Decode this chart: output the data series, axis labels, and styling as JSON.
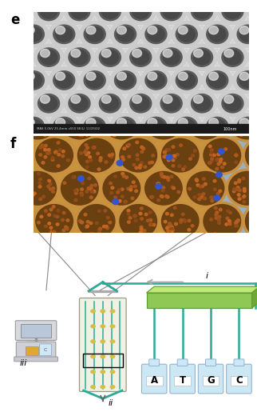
{
  "panel_e_label": "e",
  "panel_f_label": "f",
  "label_i": "i",
  "label_ii": "ii",
  "label_iii": "iii",
  "bottle_labels": [
    "A",
    "T",
    "G",
    "C"
  ],
  "bg_color": "#ffffff",
  "teal_color": "#2aaa95",
  "green_box_top": "#c8e890",
  "green_box_face": "#8cc860",
  "green_box_side": "#78b050",
  "bottle_color": "#c8e8f4",
  "label_fontsize": 12,
  "sublabel_fontsize": 8
}
